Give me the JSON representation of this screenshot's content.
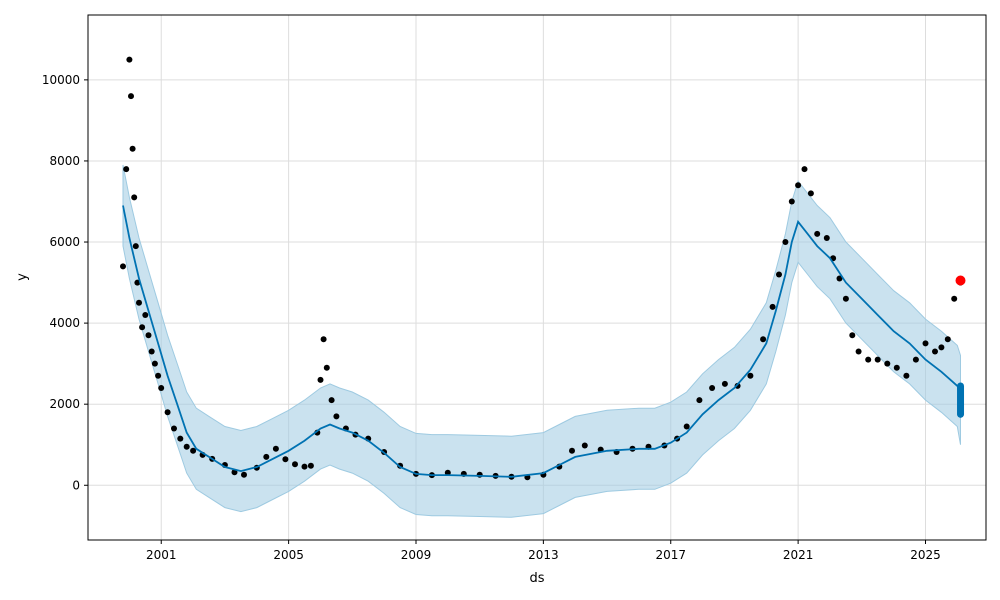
{
  "chart_data": {
    "type": "scatter",
    "title": "",
    "xlabel": "ds",
    "ylabel": "y",
    "xlim": [
      1998.7,
      2026.9
    ],
    "ylim": [
      -1350,
      11600
    ],
    "x_ticks": [
      2001,
      2005,
      2009,
      2013,
      2017,
      2021,
      2025
    ],
    "y_ticks": [
      0,
      2000,
      4000,
      6000,
      8000,
      10000
    ],
    "grid": true,
    "legend": "none",
    "colors": {
      "observed": "#000000",
      "forecast": "#0072B2",
      "interval": "#9ecae1",
      "highlight": "#ff0000",
      "grid": "#dddddd"
    },
    "series": [
      {
        "role": "observed",
        "x": [
          1999.8,
          1999.9,
          2000.0,
          2000.05,
          2000.1,
          2000.15,
          2000.2,
          2000.25,
          2000.3,
          2000.4,
          2000.5,
          2000.6,
          2000.7,
          2000.8,
          2000.9,
          2001.0,
          2001.2,
          2001.4,
          2001.6,
          2001.8,
          2002.0,
          2002.3,
          2002.6,
          2003.0,
          2003.3,
          2003.6,
          2004.0,
          2004.3,
          2004.6,
          2004.9,
          2005.2,
          2005.5,
          2005.7,
          2005.9,
          2006.0,
          2006.1,
          2006.2,
          2006.35,
          2006.5,
          2006.8,
          2007.1,
          2007.5,
          2008.0,
          2008.5,
          2009.0,
          2009.5,
          2010.0,
          2010.5,
          2011.0,
          2011.5,
          2012.0,
          2012.5,
          2013.0,
          2013.5,
          2013.9,
          2014.3,
          2014.8,
          2015.3,
          2015.8,
          2016.3,
          2016.8,
          2017.2,
          2017.5,
          2017.9,
          2018.3,
          2018.7,
          2019.1,
          2019.5,
          2019.9,
          2020.2,
          2020.4,
          2020.6,
          2020.8,
          2021.0,
          2021.2,
          2021.4,
          2021.6,
          2021.9,
          2022.1,
          2022.3,
          2022.5,
          2022.7,
          2022.9,
          2023.2,
          2023.5,
          2023.8,
          2024.1,
          2024.4,
          2024.7,
          2025.0,
          2025.3,
          2025.5,
          2025.7,
          2025.9,
          2026.1
        ],
        "y": [
          5400,
          7800,
          10500,
          9600,
          8300,
          7100,
          5900,
          5000,
          4500,
          3900,
          4200,
          3700,
          3300,
          3000,
          2700,
          2400,
          1800,
          1400,
          1150,
          950,
          850,
          750,
          650,
          500,
          320,
          260,
          430,
          700,
          900,
          640,
          520,
          460,
          480,
          1300,
          2600,
          3600,
          2900,
          2100,
          1700,
          1400,
          1250,
          1150,
          820,
          480,
          280,
          250,
          310,
          280,
          260,
          230,
          210,
          200,
          260,
          460,
          850,
          980,
          880,
          820,
          900,
          950,
          980,
          1150,
          1450,
          2100,
          2400,
          2500,
          2450,
          2700,
          3600,
          4400,
          5200,
          6000,
          7000,
          7400,
          7800,
          7200,
          6200,
          6100,
          5600,
          5100,
          4600,
          3700,
          3300,
          3100,
          3100,
          3000,
          2900,
          2700,
          3100,
          3500,
          3300,
          3400,
          3600,
          4600,
          5000
        ]
      },
      {
        "role": "forecast",
        "x": [
          1999.8,
          2000.0,
          2000.3,
          2000.6,
          2000.9,
          2001.2,
          2001.5,
          2001.8,
          2002.1,
          2002.5,
          2003.0,
          2003.5,
          2004.0,
          2004.5,
          2005.0,
          2005.5,
          2006.0,
          2006.3,
          2006.6,
          2007.0,
          2007.5,
          2008.0,
          2008.5,
          2009.0,
          2009.5,
          2010.0,
          2011.0,
          2012.0,
          2013.0,
          2013.5,
          2014.0,
          2015.0,
          2016.0,
          2016.5,
          2017.0,
          2017.5,
          2018.0,
          2018.5,
          2019.0,
          2019.5,
          2020.0,
          2020.3,
          2020.6,
          2020.8,
          2021.0,
          2021.3,
          2021.6,
          2022.0,
          2022.5,
          2023.0,
          2023.5,
          2024.0,
          2024.5,
          2025.0,
          2025.5,
          2026.0,
          2026.1
        ],
        "y": [
          6900,
          6100,
          5100,
          4300,
          3500,
          2700,
          2000,
          1300,
          900,
          700,
          450,
          350,
          450,
          650,
          850,
          1100,
          1400,
          1500,
          1400,
          1300,
          1100,
          800,
          450,
          280,
          250,
          250,
          230,
          210,
          300,
          500,
          700,
          850,
          900,
          900,
          1050,
          1300,
          1750,
          2100,
          2400,
          2850,
          3500,
          4300,
          5200,
          6000,
          6500,
          6200,
          5900,
          5600,
          5000,
          4600,
          4200,
          3800,
          3500,
          3100,
          2800,
          2450,
          2380
        ]
      },
      {
        "role": "interval",
        "x": [
          1999.8,
          2000.0,
          2000.3,
          2000.6,
          2000.9,
          2001.2,
          2001.5,
          2001.8,
          2002.1,
          2002.5,
          2003.0,
          2003.5,
          2004.0,
          2004.5,
          2005.0,
          2005.5,
          2006.0,
          2006.3,
          2006.6,
          2007.0,
          2007.5,
          2008.0,
          2008.5,
          2009.0,
          2009.5,
          2010.0,
          2011.0,
          2012.0,
          2013.0,
          2013.5,
          2014.0,
          2015.0,
          2016.0,
          2016.5,
          2017.0,
          2017.5,
          2018.0,
          2018.5,
          2019.0,
          2019.5,
          2020.0,
          2020.3,
          2020.6,
          2020.8,
          2021.0,
          2021.3,
          2021.6,
          2022.0,
          2022.5,
          2023.0,
          2023.5,
          2024.0,
          2024.5,
          2025.0,
          2025.5,
          2026.0,
          2026.1
        ],
        "lower": [
          5900,
          5100,
          4100,
          3300,
          2500,
          1700,
          1000,
          300,
          -100,
          -300,
          -550,
          -650,
          -550,
          -350,
          -150,
          100,
          400,
          500,
          400,
          300,
          100,
          -200,
          -550,
          -720,
          -750,
          -750,
          -770,
          -790,
          -700,
          -500,
          -300,
          -150,
          -100,
          -100,
          50,
          300,
          750,
          1100,
          1400,
          1850,
          2500,
          3300,
          4200,
          5000,
          5500,
          5200,
          4900,
          4600,
          4000,
          3600,
          3200,
          2800,
          2500,
          2100,
          1800,
          1450,
          1000
        ],
        "upper": [
          7900,
          7100,
          6100,
          5300,
          4500,
          3700,
          3000,
          2300,
          1900,
          1700,
          1450,
          1350,
          1450,
          1650,
          1850,
          2100,
          2400,
          2500,
          2400,
          2300,
          2100,
          1800,
          1450,
          1280,
          1250,
          1250,
          1230,
          1210,
          1300,
          1500,
          1700,
          1850,
          1900,
          1900,
          2050,
          2300,
          2750,
          3100,
          3400,
          3850,
          4500,
          5300,
          6200,
          7000,
          7500,
          7200,
          6900,
          6600,
          6000,
          5600,
          5200,
          4800,
          4500,
          4100,
          3800,
          3450,
          3200
        ]
      },
      {
        "role": "highlight",
        "x": [
          2026.1
        ],
        "y": [
          5050
        ]
      },
      {
        "role": "future-forecast",
        "x": [
          2026.1
        ],
        "y_range": [
          1750,
          2450
        ]
      }
    ]
  }
}
